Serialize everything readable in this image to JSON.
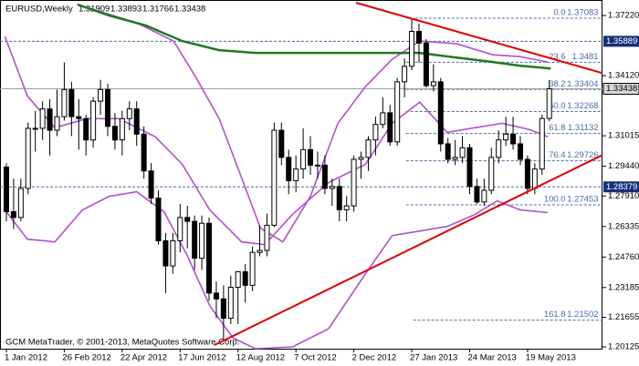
{
  "chart_data": {
    "type": "candlestick",
    "symbol": "EURUSD,Weekly",
    "footer": "GCM MetaTrader, © 2001-2013, MetaQuotes Software Corp.",
    "categories": [
      "1 Jan 2012",
      null,
      null,
      null,
      null,
      null,
      null,
      null,
      "26 Feb 2012",
      null,
      null,
      null,
      null,
      null,
      null,
      null,
      "22 Apr 2012",
      null,
      null,
      null,
      null,
      null,
      null,
      null,
      "17 Jun 2012",
      null,
      null,
      null,
      null,
      null,
      null,
      null,
      "12 Aug 2012",
      null,
      null,
      null,
      null,
      null,
      null,
      null,
      "7 Oct 2012",
      null,
      null,
      null,
      null,
      null,
      null,
      null,
      "2 Dec 2012",
      null,
      null,
      null,
      null,
      null,
      null,
      null,
      "27 Jan 2013",
      null,
      null,
      null,
      null,
      null,
      null,
      null,
      "24 Mar 2013",
      null,
      null,
      null,
      null,
      null,
      null,
      null,
      "19 May 2013",
      null,
      null,
      null
    ],
    "candles": [
      [
        1.294,
        1.296,
        1.266,
        1.271
      ],
      [
        1.271,
        1.288,
        1.262,
        1.268
      ],
      [
        1.268,
        1.288,
        1.266,
        1.283
      ],
      [
        1.283,
        1.317,
        1.28,
        1.314
      ],
      [
        1.314,
        1.323,
        1.302,
        1.314
      ],
      [
        1.314,
        1.328,
        1.308,
        1.324
      ],
      [
        1.324,
        1.329,
        1.3,
        1.313
      ],
      [
        1.313,
        1.334,
        1.31,
        1.32
      ],
      [
        1.32,
        1.348,
        1.318,
        1.334
      ],
      [
        1.334,
        1.338,
        1.31,
        1.32
      ],
      [
        1.32,
        1.329,
        1.303,
        1.319
      ],
      [
        1.319,
        1.321,
        1.3,
        1.308
      ],
      [
        1.308,
        1.33,
        1.304,
        1.328
      ],
      [
        1.328,
        1.339,
        1.321,
        1.334
      ],
      [
        1.334,
        1.337,
        1.31,
        1.315
      ],
      [
        1.315,
        1.322,
        1.303,
        1.308
      ],
      [
        1.308,
        1.323,
        1.3,
        1.319
      ],
      [
        1.319,
        1.328,
        1.313,
        1.324
      ],
      [
        1.324,
        1.328,
        1.305,
        1.311
      ],
      [
        1.311,
        1.315,
        1.288,
        1.292
      ],
      [
        1.292,
        1.296,
        1.275,
        1.278
      ],
      [
        1.278,
        1.282,
        1.254,
        1.256
      ],
      [
        1.256,
        1.26,
        1.229,
        1.243
      ],
      [
        1.243,
        1.26,
        1.239,
        1.256
      ],
      [
        1.256,
        1.275,
        1.25,
        1.268
      ],
      [
        1.268,
        1.274,
        1.252,
        1.266
      ],
      [
        1.266,
        1.269,
        1.241,
        1.247
      ],
      [
        1.247,
        1.269,
        1.241,
        1.265
      ],
      [
        1.265,
        1.268,
        1.225,
        1.229
      ],
      [
        1.229,
        1.235,
        1.216,
        1.226
      ],
      [
        1.226,
        1.233,
        1.204,
        1.216
      ],
      [
        1.216,
        1.238,
        1.213,
        1.232
      ],
      [
        1.232,
        1.24,
        1.213,
        1.24
      ],
      [
        1.24,
        1.244,
        1.224,
        1.233
      ],
      [
        1.233,
        1.253,
        1.23,
        1.25
      ],
      [
        1.25,
        1.264,
        1.248,
        1.251
      ],
      [
        1.251,
        1.27,
        1.248,
        1.264
      ],
      [
        1.264,
        1.317,
        1.263,
        1.313
      ],
      [
        1.313,
        1.317,
        1.295,
        1.299
      ],
      [
        1.299,
        1.303,
        1.28,
        1.287
      ],
      [
        1.287,
        1.3,
        1.281,
        1.293
      ],
      [
        1.293,
        1.314,
        1.288,
        1.303
      ],
      [
        1.303,
        1.31,
        1.29,
        1.295
      ],
      [
        1.295,
        1.302,
        1.288,
        1.295
      ],
      [
        1.295,
        1.3,
        1.28,
        1.283
      ],
      [
        1.283,
        1.288,
        1.274,
        1.284
      ],
      [
        1.284,
        1.288,
        1.266,
        1.272
      ],
      [
        1.272,
        1.279,
        1.266,
        1.274
      ],
      [
        1.274,
        1.3,
        1.271,
        1.298
      ],
      [
        1.298,
        1.302,
        1.288,
        1.299
      ],
      [
        1.299,
        1.31,
        1.292,
        1.308
      ],
      [
        1.308,
        1.32,
        1.3,
        1.316
      ],
      [
        1.316,
        1.33,
        1.314,
        1.322
      ],
      [
        1.322,
        1.326,
        1.305,
        1.307
      ],
      [
        1.307,
        1.34,
        1.305,
        1.338
      ],
      [
        1.338,
        1.35,
        1.33,
        1.346
      ],
      [
        1.346,
        1.371,
        1.344,
        1.364
      ],
      [
        1.364,
        1.368,
        1.348,
        1.358
      ],
      [
        1.358,
        1.36,
        1.335,
        1.336
      ],
      [
        1.336,
        1.347,
        1.333,
        1.338
      ],
      [
        1.338,
        1.34,
        1.302,
        1.306
      ],
      [
        1.306,
        1.309,
        1.296,
        1.298
      ],
      [
        1.298,
        1.308,
        1.295,
        1.299
      ],
      [
        1.299,
        1.31,
        1.296,
        1.304
      ],
      [
        1.304,
        1.306,
        1.28,
        1.284
      ],
      [
        1.284,
        1.288,
        1.275,
        1.276
      ],
      [
        1.276,
        1.288,
        1.274,
        1.282
      ],
      [
        1.282,
        1.304,
        1.28,
        1.299
      ],
      [
        1.299,
        1.313,
        1.296,
        1.308
      ],
      [
        1.308,
        1.32,
        1.305,
        1.311
      ],
      [
        1.311,
        1.32,
        1.303,
        1.306
      ],
      [
        1.306,
        1.31,
        1.295,
        1.298
      ],
      [
        1.298,
        1.3,
        1.28,
        1.283
      ],
      [
        1.283,
        1.296,
        1.28,
        1.293
      ],
      [
        1.293,
        1.321,
        1.29,
        1.3191
      ],
      [
        1.31909,
        1.33893,
        1.31766,
        1.33438
      ]
    ],
    "series": [
      {
        "color": "#b050d0",
        "x": [
          9.8,
          18.0,
          23.1,
          26.2,
          29.4,
          32.5,
          35.1,
          38.2,
          42.0,
          45.8,
          49.6,
          53.3,
          57.1,
          62.2,
          67.2,
          71.0,
          74.8
        ],
        "values": [
          1.3779,
          1.3684,
          1.359,
          1.3402,
          1.319,
          1.2884,
          1.2625,
          1.2554,
          1.2789,
          1.3166,
          1.3355,
          1.3496,
          1.359,
          1.3576,
          1.3519,
          1.351,
          1.3482
        ]
      },
      {
        "color": "#b050d0",
        "x": [
          -0.2,
          2.9,
          6.7,
          11.1,
          15.5,
          20.6,
          24.3,
          28.1,
          32.5,
          35.7,
          39.5,
          44.5,
          49.6,
          53.3,
          57.1,
          60.9,
          64.7,
          68.5,
          72.3,
          74.8
        ],
        "values": [
          1.3614,
          1.3307,
          1.3143,
          1.319,
          1.319,
          1.3096,
          1.2954,
          1.2719,
          1.2554,
          1.254,
          1.2695,
          1.286,
          1.2954,
          1.3166,
          1.3275,
          1.3119,
          1.3143,
          1.3166,
          1.3133,
          1.3096
        ]
      },
      {
        "color": "#b050d0",
        "x": [
          -0.2,
          2.9,
          6.7,
          10.5,
          14.2,
          18.0,
          21.8,
          25.0,
          28.1,
          31.3,
          34.4,
          39.5,
          44.5,
          49.6,
          53.3,
          57.1,
          60.9,
          64.7,
          67.8,
          71.0,
          74.8
        ],
        "values": [
          1.2719,
          1.2568,
          1.2554,
          1.2719,
          1.2789,
          1.2813,
          1.2709,
          1.2483,
          1.2224,
          1.2059,
          1.2003,
          1.2012,
          1.2106,
          1.2389,
          1.2587,
          1.261,
          1.2634,
          1.2695,
          1.2766,
          1.2719,
          1.2705
        ]
      },
      {
        "color": "#1e7a1e",
        "x": [
          9.8,
          14.2,
          19.3,
          24.3,
          29.4,
          34.4,
          42.0,
          49.6,
          57.1,
          62.2,
          67.2,
          71.0,
          75.2
        ],
        "values": [
          1.3779,
          1.3722,
          1.367,
          1.359,
          1.3543,
          1.3529,
          1.3529,
          1.3529,
          1.3529,
          1.3505,
          1.3482,
          1.3463,
          1.3449
        ]
      }
    ],
    "trendlines": [
      {
        "color": "#e00000",
        "x": [
          48.3,
          82.3
        ],
        "values": [
          1.37879,
          1.34253
        ]
      },
      {
        "color": "#e00000",
        "x": [
          28.75,
          82.3
        ],
        "values": [
          1.20217,
          1.30014
        ]
      }
    ],
    "fibo": {
      "color": "#4a6fa5",
      "x": [
        55.2,
        82.3
      ],
      "levels": [
        {
          "label": "0.0",
          "value": 1.37083
        },
        {
          "label": "23.6",
          "value": 1.3481
        },
        {
          "label": "38.2",
          "value": 1.33404
        },
        {
          "label": "50.0",
          "value": 1.32268
        },
        {
          "label": "61.8",
          "value": 1.31132
        },
        {
          "label": "76.4",
          "value": 1.29726
        },
        {
          "label": "100.0",
          "value": 1.27453
        },
        {
          "label": "161.8",
          "value": 1.21502
        }
      ]
    },
    "hlines": [
      {
        "value": 1.35889,
        "color": "#4a6fa5",
        "label_bg": "#13307a"
      },
      {
        "value": 1.28379,
        "color": "#4a6fa5",
        "label_bg": "#13307a"
      }
    ],
    "bull_color": "#ffffff",
    "bear_color": "#000000",
    "xlim": [
      -0.88,
      82.35
    ],
    "ylim": [
      1.2003,
      1.3802
    ],
    "yticks": [
      {
        "value": 1.3722,
        "label": "1.37220"
      },
      {
        "value": 1.3412,
        "label": "1.34120"
      },
      1.31015,
      {
        "value": 1.2944,
        "label": "1.29440"
      },
      {
        "value": 1.2791,
        "label": "1.27910"
      },
      1.26335,
      {
        "value": 1.2476,
        "label": "1.24760"
      },
      1.23185,
      1.21655,
      1.20125
    ]
  }
}
